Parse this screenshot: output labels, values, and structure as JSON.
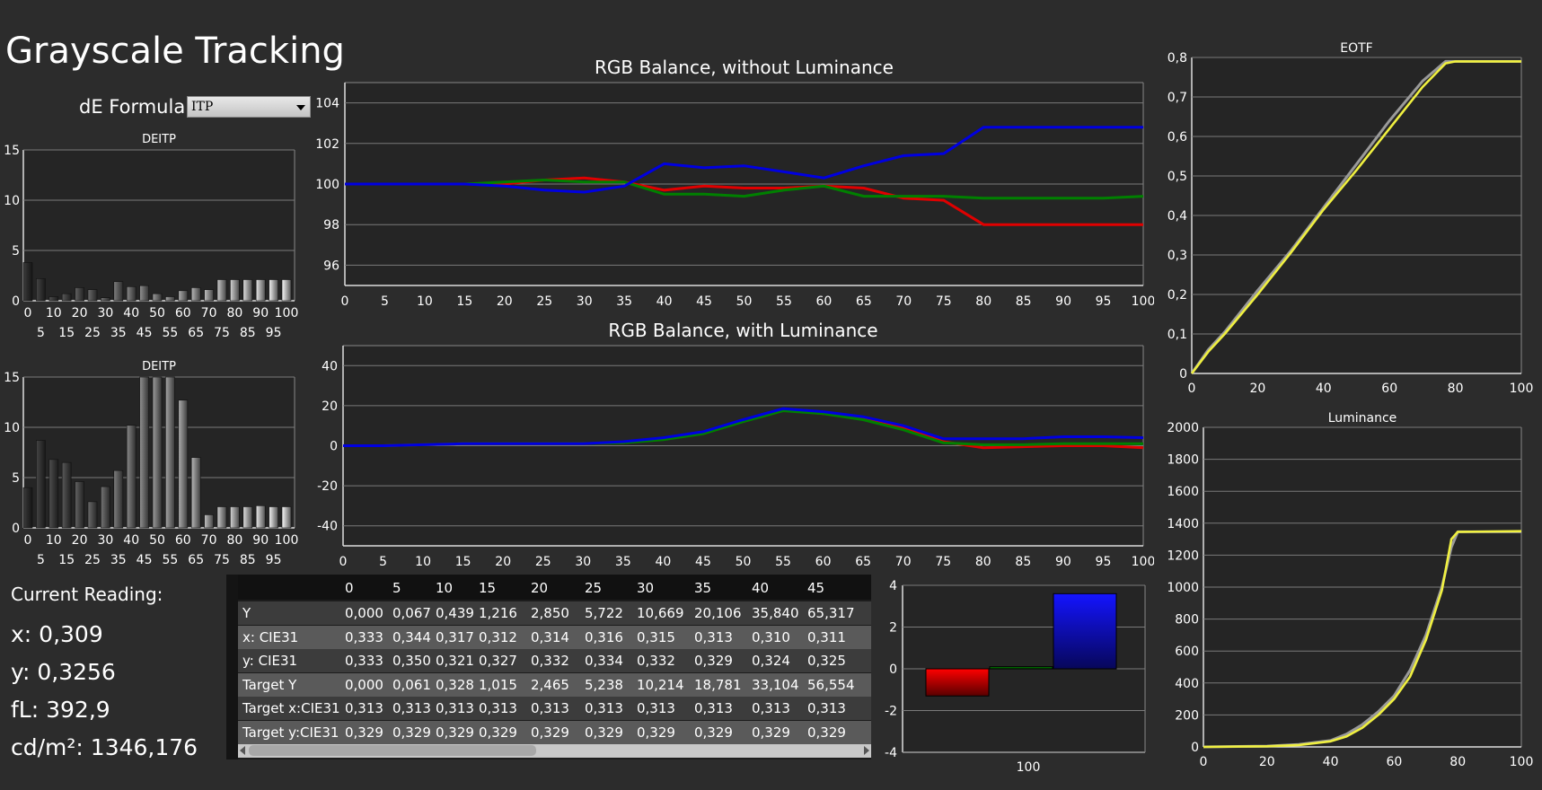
{
  "page": {
    "title": "Grayscale Tracking",
    "formula_label": "dE Formula:",
    "formula_value": "ITP"
  },
  "current_reading": {
    "label": "Current Reading:",
    "x": "x: 0,309",
    "y": "y: 0,3256",
    "fl": "fL: 392,9",
    "cdm2": "cd/m²: 1346,176"
  },
  "colors": {
    "red": "#e00000",
    "green": "#008000",
    "blue": "#0000e0",
    "yellow": "#f0f040",
    "gray": "#9a9a9a"
  },
  "table": {
    "columns": [
      "0",
      "5",
      "10",
      "15",
      "20",
      "25",
      "30",
      "35",
      "40",
      "45"
    ],
    "rows": [
      {
        "label": "Y",
        "values": [
          "0,000",
          "0,067",
          "0,439",
          "1,216",
          "2,850",
          "5,722",
          "10,669",
          "20,106",
          "35,840",
          "65,317"
        ]
      },
      {
        "label": "x: CIE31",
        "values": [
          "0,333",
          "0,344",
          "0,317",
          "0,312",
          "0,314",
          "0,316",
          "0,315",
          "0,313",
          "0,310",
          "0,311"
        ]
      },
      {
        "label": "y: CIE31",
        "values": [
          "0,333",
          "0,350",
          "0,321",
          "0,327",
          "0,332",
          "0,334",
          "0,332",
          "0,329",
          "0,324",
          "0,325"
        ]
      },
      {
        "label": "Target Y",
        "values": [
          "0,000",
          "0,061",
          "0,328",
          "1,015",
          "2,465",
          "5,238",
          "10,214",
          "18,781",
          "33,104",
          "56,554"
        ]
      },
      {
        "label": "Target x:CIE31",
        "values": [
          "0,313",
          "0,313",
          "0,313",
          "0,313",
          "0,313",
          "0,313",
          "0,313",
          "0,313",
          "0,313",
          "0,313"
        ]
      },
      {
        "label": "Target y:CIE31",
        "values": [
          "0,329",
          "0,329",
          "0,329",
          "0,329",
          "0,329",
          "0,329",
          "0,329",
          "0,329",
          "0,329",
          "0,329"
        ]
      }
    ]
  },
  "chart_data": [
    {
      "id": "deitp1",
      "type": "bar",
      "title": "DEITP",
      "x": [
        0,
        5,
        10,
        15,
        20,
        25,
        30,
        35,
        40,
        45,
        50,
        55,
        60,
        65,
        70,
        75,
        80,
        85,
        90,
        95,
        100
      ],
      "values": [
        3.8,
        2.2,
        0.4,
        0.7,
        1.3,
        1.1,
        0.3,
        1.9,
        1.4,
        1.5,
        0.7,
        0.4,
        1.0,
        1.3,
        1.1,
        2.1,
        2.1,
        2.1,
        2.1,
        2.1,
        2.1
      ],
      "ylim": [
        0,
        15
      ],
      "yticks": [
        0,
        5,
        10,
        15
      ],
      "xticks_top": [
        0,
        10,
        20,
        30,
        40,
        50,
        60,
        70,
        80,
        90,
        100
      ],
      "xticks_bottom": [
        5,
        15,
        25,
        35,
        45,
        55,
        65,
        75,
        85,
        95
      ]
    },
    {
      "id": "deitp2",
      "type": "bar",
      "title": "DEITP",
      "x": [
        0,
        5,
        10,
        15,
        20,
        25,
        30,
        35,
        40,
        45,
        50,
        55,
        60,
        65,
        70,
        75,
        80,
        85,
        90,
        95,
        100
      ],
      "values": [
        4.0,
        8.7,
        6.8,
        6.5,
        4.6,
        2.6,
        4.1,
        5.7,
        10.2,
        15,
        15,
        15,
        12.7,
        7.0,
        1.3,
        2.1,
        2.1,
        2.1,
        2.2,
        2.1,
        2.1
      ],
      "ylim": [
        0,
        15
      ],
      "yticks": [
        0,
        5,
        10,
        15
      ],
      "xticks_top": [
        0,
        10,
        20,
        30,
        40,
        50,
        60,
        70,
        80,
        90,
        100
      ],
      "xticks_bottom": [
        5,
        15,
        25,
        35,
        45,
        55,
        65,
        75,
        85,
        95
      ]
    },
    {
      "id": "rgb1",
      "type": "line",
      "title": "RGB Balance, without Luminance",
      "x": [
        0,
        5,
        10,
        15,
        20,
        25,
        30,
        35,
        40,
        45,
        50,
        55,
        60,
        65,
        70,
        75,
        80,
        85,
        90,
        95,
        100
      ],
      "xlim": [
        0,
        100
      ],
      "ylim": [
        95,
        105
      ],
      "yticks": [
        96,
        98,
        100,
        102,
        104
      ],
      "xticks": [
        0,
        5,
        10,
        15,
        20,
        25,
        30,
        35,
        40,
        45,
        50,
        55,
        60,
        65,
        70,
        75,
        80,
        85,
        90,
        95,
        100
      ],
      "series": [
        {
          "color": "red",
          "values": [
            100,
            100,
            100,
            100,
            100,
            100.2,
            100.3,
            100.1,
            99.7,
            99.9,
            99.8,
            99.8,
            99.9,
            99.8,
            99.3,
            99.2,
            98.0,
            98.0,
            98.0,
            98.0,
            98.0
          ]
        },
        {
          "color": "green",
          "values": [
            100,
            100,
            100,
            100,
            100.1,
            100.2,
            100.1,
            100.1,
            99.5,
            99.5,
            99.4,
            99.7,
            99.9,
            99.4,
            99.4,
            99.4,
            99.3,
            99.3,
            99.3,
            99.3,
            99.4
          ]
        },
        {
          "color": "blue",
          "values": [
            100,
            100,
            100,
            100,
            99.9,
            99.7,
            99.6,
            99.9,
            101.0,
            100.8,
            100.9,
            100.6,
            100.3,
            100.9,
            101.4,
            101.5,
            102.8,
            102.8,
            102.8,
            102.8,
            102.8
          ]
        }
      ]
    },
    {
      "id": "rgb2",
      "type": "line",
      "title": "RGB Balance, with Luminance",
      "x": [
        0,
        5,
        10,
        15,
        20,
        25,
        30,
        35,
        40,
        45,
        50,
        55,
        60,
        65,
        70,
        75,
        80,
        85,
        90,
        95,
        100
      ],
      "xlim": [
        0,
        100
      ],
      "ylim": [
        -50,
        50
      ],
      "yticks": [
        -40,
        -20,
        0,
        20,
        40
      ],
      "xticks": [
        0,
        5,
        10,
        15,
        20,
        25,
        30,
        35,
        40,
        45,
        50,
        55,
        60,
        65,
        70,
        75,
        80,
        85,
        90,
        95,
        100
      ],
      "series": [
        {
          "color": "red",
          "values": [
            0,
            0,
            0.5,
            1,
            1,
            1,
            1,
            1.5,
            3.5,
            6.5,
            12.5,
            18,
            16,
            14,
            9,
            2,
            -1,
            -0.5,
            0,
            0,
            -1
          ]
        },
        {
          "color": "green",
          "values": [
            0,
            0,
            0.5,
            1,
            1,
            1,
            1,
            1.5,
            3,
            6,
            12,
            17.5,
            16,
            13,
            8,
            1.5,
            0.5,
            0.5,
            1,
            1,
            1
          ]
        },
        {
          "color": "blue",
          "values": [
            0,
            0,
            0.5,
            1,
            1,
            1,
            1,
            2,
            4,
            7,
            13,
            18.5,
            17,
            14.5,
            10,
            3.5,
            3.5,
            3.5,
            4.5,
            4.5,
            4
          ]
        }
      ]
    },
    {
      "id": "eotf",
      "type": "line",
      "title": "EOTF",
      "xlim": [
        0,
        100
      ],
      "ylim": [
        0,
        0.8
      ],
      "xticks": [
        0,
        20,
        40,
        60,
        80,
        100
      ],
      "xticklabels": [
        "0",
        "20",
        "40",
        "60",
        "80",
        "100"
      ],
      "yticks": [
        0,
        0.1,
        0.2,
        0.3,
        0.4,
        0.5,
        0.6,
        0.7,
        0.8
      ],
      "yticklabels": [
        "0",
        "0,1",
        "0,2",
        "0,3",
        "0,4",
        "0,5",
        "0,6",
        "0,7",
        "0,8"
      ],
      "series": [
        {
          "color": "gray",
          "x": [
            0,
            5,
            10,
            20,
            30,
            40,
            50,
            60,
            70,
            77,
            80,
            100
          ],
          "values": [
            0,
            0.06,
            0.105,
            0.21,
            0.31,
            0.42,
            0.53,
            0.64,
            0.74,
            0.79,
            0.79,
            0.79
          ]
        },
        {
          "color": "yellow",
          "x": [
            0,
            5,
            10,
            20,
            30,
            40,
            50,
            60,
            70,
            77,
            80,
            100
          ],
          "values": [
            0,
            0.055,
            0.1,
            0.2,
            0.305,
            0.415,
            0.515,
            0.62,
            0.725,
            0.785,
            0.79,
            0.79
          ]
        }
      ]
    },
    {
      "id": "luminance",
      "type": "line",
      "title": "Luminance",
      "xlim": [
        0,
        100
      ],
      "ylim": [
        0,
        2000
      ],
      "xticks": [
        0,
        20,
        40,
        60,
        80,
        100
      ],
      "xticklabels": [
        "0",
        "20",
        "40",
        "60",
        "80",
        "100"
      ],
      "yticks": [
        0,
        200,
        400,
        600,
        800,
        1000,
        1200,
        1400,
        1600,
        1800,
        2000
      ],
      "yticklabels": [
        "0",
        "200",
        "400",
        "600",
        "800",
        "1000",
        "1200",
        "1400",
        "1600",
        "1800",
        "2000"
      ],
      "series": [
        {
          "color": "gray",
          "x": [
            0,
            20,
            30,
            40,
            45,
            50,
            55,
            60,
            65,
            70,
            75,
            78,
            80,
            100
          ],
          "values": [
            0,
            5,
            15,
            40,
            80,
            140,
            220,
            320,
            480,
            700,
            1000,
            1250,
            1346,
            1346
          ]
        },
        {
          "color": "yellow",
          "x": [
            0,
            20,
            30,
            40,
            45,
            50,
            55,
            60,
            65,
            70,
            75,
            78,
            80,
            100
          ],
          "values": [
            0,
            4,
            12,
            35,
            65,
            120,
            200,
            300,
            440,
            670,
            980,
            1300,
            1346,
            1350
          ]
        }
      ]
    },
    {
      "id": "balance",
      "type": "bar",
      "title": "",
      "category": "100",
      "ylim": [
        -4,
        4
      ],
      "yticks": [
        -4,
        -2,
        0,
        2,
        4
      ],
      "series": [
        {
          "color": "red",
          "value": -1.3
        },
        {
          "color": "green",
          "value": 0.1
        },
        {
          "color": "blue",
          "value": 3.6
        }
      ]
    }
  ]
}
